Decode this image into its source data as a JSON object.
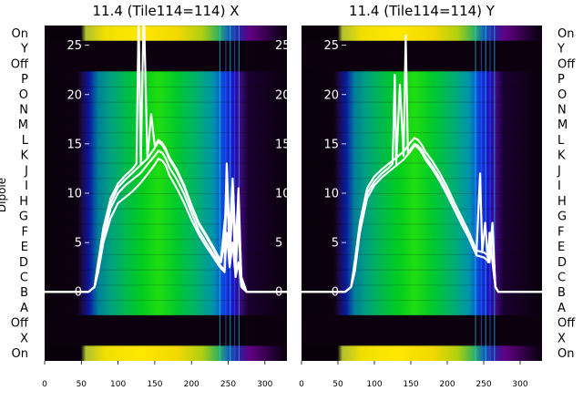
{
  "chart_data": [
    {
      "type": "heatmap",
      "title": "11.4 (Tile114=114) X",
      "ylabel": "Dipole",
      "y_tick_labels": [
        "On",
        "Y",
        "Off",
        "P",
        "O",
        "N",
        "M",
        "L",
        "K",
        "J",
        "I",
        "H",
        "G",
        "F",
        "E",
        "D",
        "C",
        "B",
        "A",
        "Off",
        "X",
        "On"
      ],
      "x_ticks": [
        0,
        50,
        100,
        150,
        200,
        250,
        300
      ],
      "xlim": [
        0,
        330
      ],
      "overlay_y_ticks": [
        0,
        5,
        10,
        15,
        20,
        25
      ],
      "overlay_ylim": [
        -7,
        27
      ],
      "overlay_series": [
        {
          "x": [
            0,
            35,
            60,
            68,
            73,
            80,
            90,
            100,
            110,
            120,
            130,
            140,
            150,
            155,
            160,
            165,
            170,
            180,
            190,
            200,
            210,
            220,
            230,
            235,
            240,
            245,
            248,
            252,
            256,
            260,
            264,
            268,
            275,
            290,
            330
          ],
          "values": [
            0,
            0,
            0,
            0.5,
            3,
            6,
            9,
            10.6,
            11.4,
            12.1,
            12.8,
            13.5,
            14.6,
            15.2,
            14.9,
            14.3,
            13.4,
            12.2,
            10.6,
            8.6,
            6.8,
            5.6,
            4.3,
            3.6,
            3,
            5,
            13,
            5.5,
            11.5,
            4,
            10.5,
            1,
            0,
            0,
            0
          ]
        },
        {
          "x": [
            0,
            35,
            60,
            68,
            73,
            80,
            90,
            100,
            110,
            120,
            130,
            140,
            150,
            155,
            160,
            165,
            170,
            180,
            190,
            200,
            210,
            220,
            230,
            235,
            240,
            245,
            248,
            252,
            256,
            260,
            264,
            268,
            275,
            290,
            330
          ],
          "values": [
            0,
            0,
            0,
            0.5,
            2.5,
            5.5,
            8.5,
            10,
            10.8,
            11.4,
            12,
            12.9,
            13.8,
            14.3,
            14.1,
            13.5,
            12.6,
            11.4,
            9.9,
            8,
            6.2,
            5,
            3.8,
            3.2,
            2.6,
            2.2,
            12,
            3,
            9.5,
            2,
            7,
            0.5,
            0,
            0,
            0
          ]
        },
        {
          "x": [
            0,
            35,
            60,
            68,
            73,
            80,
            90,
            100,
            110,
            120,
            130,
            140,
            150,
            155,
            160,
            165,
            170,
            180,
            190,
            200,
            210,
            220,
            230,
            235,
            240,
            245,
            248,
            252,
            256,
            260,
            264,
            268,
            275,
            290,
            330
          ],
          "values": [
            0,
            0,
            0,
            0.5,
            2,
            5,
            7.5,
            9,
            9.6,
            10.2,
            11,
            11.9,
            12.9,
            13.5,
            13.3,
            12.8,
            11.8,
            10.5,
            9,
            7.3,
            5.8,
            4.6,
            3.5,
            2.9,
            2.4,
            2,
            6,
            2.5,
            5,
            1.5,
            3,
            0.5,
            0,
            0,
            0
          ]
        },
        {
          "x": [
            0,
            35,
            60,
            68,
            73,
            80,
            90,
            100,
            110,
            120,
            125,
            128,
            131,
            135,
            140,
            145,
            150,
            155,
            160,
            165,
            170,
            180,
            190,
            200,
            210,
            220,
            230,
            235,
            240,
            245,
            248,
            252,
            256,
            260,
            264,
            268,
            275,
            290,
            330
          ],
          "values": [
            0,
            0,
            0,
            0.5,
            3,
            6.5,
            9.5,
            11,
            11.8,
            12.5,
            13,
            28,
            13,
            29,
            13.5,
            18,
            14.8,
            15.4,
            15.1,
            14.5,
            13.6,
            12.4,
            10.8,
            8.8,
            7,
            5.8,
            4.5,
            3.8,
            3.2,
            7,
            9,
            6,
            11,
            5,
            9,
            1.5,
            0,
            0,
            0
          ]
        }
      ]
    },
    {
      "type": "heatmap",
      "title": "11.4 (Tile114=114) Y",
      "y_tick_labels": [
        "On",
        "Y",
        "Off",
        "P",
        "O",
        "N",
        "M",
        "L",
        "K",
        "J",
        "I",
        "H",
        "G",
        "F",
        "E",
        "D",
        "C",
        "B",
        "A",
        "Off",
        "X",
        "On"
      ],
      "x_ticks": [
        0,
        50,
        100,
        150,
        200,
        250,
        300
      ],
      "xlim": [
        0,
        330
      ],
      "overlay_y_ticks": [
        0,
        5,
        10,
        15,
        20,
        25
      ],
      "overlay_ylim": [
        -7,
        27
      ],
      "overlay_series": [
        {
          "x": [
            0,
            35,
            60,
            68,
            73,
            80,
            90,
            100,
            110,
            120,
            130,
            140,
            150,
            155,
            160,
            165,
            170,
            180,
            190,
            200,
            210,
            220,
            230,
            240,
            250,
            258,
            262,
            266,
            270,
            280,
            330
          ],
          "values": [
            0,
            0,
            0,
            0.5,
            3,
            7,
            10.5,
            11.7,
            12.4,
            13,
            13.6,
            14.2,
            15.2,
            15.6,
            15.4,
            14.9,
            14.2,
            13.2,
            12,
            10.6,
            9,
            7.5,
            6,
            4.2,
            4,
            3.6,
            7,
            0.5,
            0,
            0,
            0
          ]
        },
        {
          "x": [
            0,
            35,
            60,
            68,
            73,
            80,
            90,
            100,
            110,
            120,
            125,
            128,
            130,
            135,
            140,
            143,
            146,
            150,
            155,
            160,
            165,
            170,
            180,
            190,
            200,
            210,
            220,
            230,
            240,
            245,
            248,
            252,
            256,
            258,
            262,
            266,
            270,
            280,
            330
          ],
          "values": [
            0,
            0,
            0,
            0.5,
            2.5,
            6.5,
            10,
            11.2,
            12,
            12.6,
            13,
            22,
            13,
            21,
            13.8,
            26,
            14,
            14.5,
            15,
            14.8,
            14.4,
            13.7,
            12.7,
            11.5,
            10.1,
            8.5,
            7,
            5.6,
            3.8,
            12,
            4,
            7,
            3,
            6,
            3,
            0.5,
            0,
            0,
            0
          ]
        },
        {
          "x": [
            0,
            35,
            60,
            68,
            73,
            80,
            90,
            100,
            110,
            120,
            130,
            140,
            150,
            155,
            160,
            165,
            170,
            180,
            190,
            200,
            210,
            220,
            230,
            240,
            250,
            258,
            262,
            266,
            270,
            280,
            330
          ],
          "values": [
            0,
            0,
            0,
            0.5,
            2,
            6,
            9.5,
            10.8,
            11.6,
            12.2,
            12.8,
            13.4,
            14.3,
            14.8,
            14.6,
            14.1,
            13.4,
            12.4,
            11.2,
            9.8,
            8.3,
            6.8,
            5.4,
            3.7,
            3.5,
            3,
            6,
            0.5,
            0,
            0,
            0
          ]
        }
      ]
    }
  ]
}
